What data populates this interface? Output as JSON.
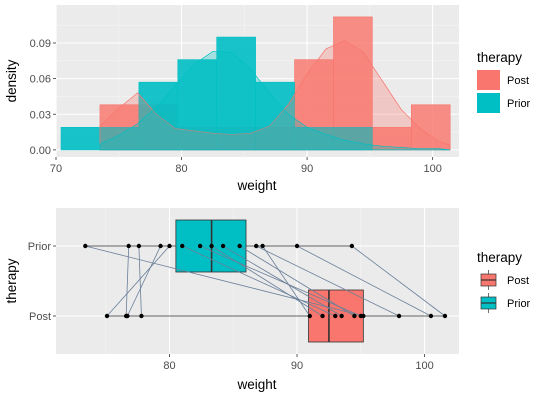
{
  "colors": {
    "panel_bg": "#EBEBEB",
    "grid_major": "#FFFFFF",
    "grid_minor": "#F5F5F5",
    "post": "#F8766D",
    "prior": "#00BFC4",
    "segment": "#6A7F99",
    "point": "#000000",
    "tick_text": "#4D4D4D"
  },
  "chart_data": [
    {
      "type": "histogram+density",
      "title": "",
      "xlabel": "weight",
      "ylabel": "density",
      "xlim": [
        70.0,
        102.1
      ],
      "ylim": [
        -0.006,
        0.122
      ],
      "x_ticks": [
        "70",
        "80",
        "90",
        "100"
      ],
      "y_ticks": [
        "0.00",
        "0.03",
        "0.06",
        "0.09"
      ],
      "legend": {
        "title": "therapy",
        "position": "right",
        "entries": [
          "Post",
          "Prior"
        ]
      },
      "bin_width": 3.1,
      "series": [
        {
          "name": "Post",
          "bins": [
            {
              "x0": 73.5,
              "x1": 76.6,
              "density": 0.038
            },
            {
              "x0": 76.6,
              "x1": 79.7,
              "density": 0.038
            },
            {
              "x0": 79.7,
              "x1": 82.8,
              "density": 0.019
            },
            {
              "x0": 82.8,
              "x1": 85.9,
              "density": 0.019
            },
            {
              "x0": 85.9,
              "x1": 89.0,
              "density": 0.019
            },
            {
              "x0": 89.0,
              "x1": 92.1,
              "density": 0.076
            },
            {
              "x0": 92.1,
              "x1": 95.2,
              "density": 0.112
            },
            {
              "x0": 95.2,
              "x1": 98.3,
              "density": 0.019
            },
            {
              "x0": 98.3,
              "x1": 101.4,
              "density": 0.038
            }
          ],
          "density_curve": {
            "x": [
              73.5,
              75,
              76.5,
              78,
              79.5,
              81,
              82.5,
              84,
              85.5,
              87,
              88.5,
              90,
              91.5,
              93,
              94.5,
              96,
              97.5,
              99,
              100.5,
              101.4
            ],
            "y": [
              0.02,
              0.035,
              0.048,
              0.03,
              0.018,
              0.016,
              0.014,
              0.013,
              0.014,
              0.02,
              0.038,
              0.064,
              0.085,
              0.092,
              0.082,
              0.058,
              0.034,
              0.018,
              0.007,
              0.004
            ]
          }
        },
        {
          "name": "Prior",
          "bins": [
            {
              "x0": 70.4,
              "x1": 73.5,
              "density": 0.019
            },
            {
              "x0": 73.5,
              "x1": 76.6,
              "density": 0.019
            },
            {
              "x0": 76.6,
              "x1": 79.7,
              "density": 0.057
            },
            {
              "x0": 79.7,
              "x1": 82.8,
              "density": 0.076
            },
            {
              "x0": 82.8,
              "x1": 85.9,
              "density": 0.095
            },
            {
              "x0": 85.9,
              "x1": 89.0,
              "density": 0.057
            },
            {
              "x0": 89.0,
              "x1": 92.1,
              "density": 0.019
            },
            {
              "x0": 92.1,
              "x1": 95.2,
              "density": 0.019
            }
          ],
          "density_curve": {
            "x": [
              73.5,
              75,
              76.5,
              78,
              79.5,
              81,
              82.5,
              84,
              85.5,
              87,
              88.5,
              90,
              91.5,
              93,
              94.5,
              96,
              97.5,
              99,
              100.5,
              101.4
            ],
            "y": [
              0.005,
              0.012,
              0.022,
              0.036,
              0.054,
              0.072,
              0.083,
              0.082,
              0.068,
              0.048,
              0.03,
              0.019,
              0.013,
              0.008,
              0.005,
              0.003,
              0.002,
              0.001,
              0.001,
              0.0
            ]
          }
        }
      ]
    },
    {
      "type": "boxplot+points",
      "title": "",
      "xlabel": "weight",
      "ylabel": "therapy",
      "xlim": [
        71.1,
        102.7
      ],
      "x_ticks": [
        "80",
        "90",
        "100"
      ],
      "categories": [
        "Prior",
        "Post"
      ],
      "legend": {
        "title": "therapy",
        "position": "right",
        "entries": [
          "Post",
          "Prior"
        ]
      },
      "boxes": [
        {
          "name": "Prior",
          "q1": 80.5,
          "median": 83.3,
          "q3": 86.0,
          "whisker_low": 73.4,
          "whisker_high": 94.3
        },
        {
          "name": "Post",
          "q1": 90.9,
          "median": 92.5,
          "q3": 95.2,
          "whisker_low": 75.1,
          "whisker_high": 101.6
        }
      ],
      "pairs": [
        {
          "prior": 73.4,
          "post": 95.2
        },
        {
          "prior": 76.8,
          "post": 76.6
        },
        {
          "prior": 77.6,
          "post": 77.8
        },
        {
          "prior": 79.3,
          "post": 76.7
        },
        {
          "prior": 80.0,
          "post": 75.1
        },
        {
          "prior": 81.0,
          "post": 93.0
        },
        {
          "prior": 82.4,
          "post": 95.0
        },
        {
          "prior": 83.3,
          "post": 92.0
        },
        {
          "prior": 84.2,
          "post": 93.5
        },
        {
          "prior": 85.5,
          "post": 94.5
        },
        {
          "prior": 86.8,
          "post": 98.0
        },
        {
          "prior": 87.3,
          "post": 91.0
        },
        {
          "prior": 90.0,
          "post": 100.5
        },
        {
          "prior": 94.3,
          "post": 101.6
        }
      ]
    }
  ]
}
